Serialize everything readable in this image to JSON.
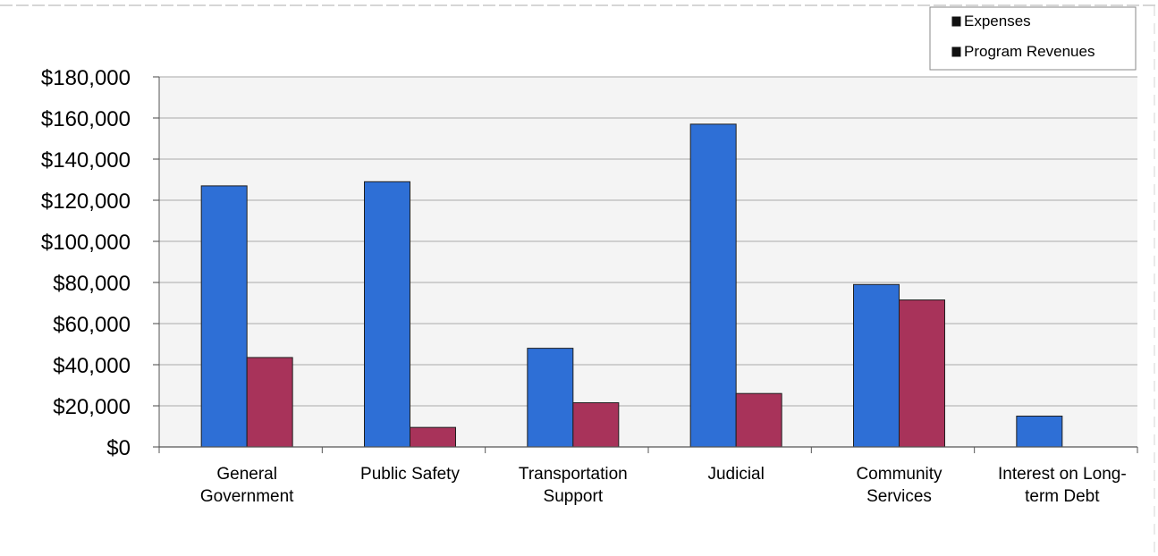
{
  "colors": {
    "expenses": "#2e6fd6",
    "program_revenues": "#a8335a",
    "gridline": "#b9b9b9",
    "plot_background": "#f4f4f4"
  },
  "chart_data": {
    "type": "bar",
    "categories": [
      [
        "General",
        "Government"
      ],
      [
        "Public Safety"
      ],
      [
        "Transportation",
        "Support"
      ],
      [
        "Judicial"
      ],
      [
        "Community",
        "Services"
      ],
      [
        "Interest on Long-",
        "term Debt"
      ]
    ],
    "series": [
      {
        "name": "Expenses",
        "color_key": "expenses",
        "values": [
          127000,
          129000,
          48000,
          157000,
          79000,
          15000
        ]
      },
      {
        "name": "Program Revenues",
        "color_key": "program_revenues",
        "values": [
          43500,
          9500,
          21500,
          26000,
          71500,
          0
        ]
      }
    ],
    "ylim": [
      0,
      180000
    ],
    "yticks": [
      0,
      20000,
      40000,
      60000,
      80000,
      100000,
      120000,
      140000,
      160000,
      180000
    ],
    "ytick_labels": [
      "$0",
      "$20,000",
      "$40,000",
      "$60,000",
      "$80,000",
      "$100,000",
      "$120,000",
      "$140,000",
      "$160,000",
      "$180,000"
    ],
    "grid": true,
    "legend_position": "top-right"
  }
}
